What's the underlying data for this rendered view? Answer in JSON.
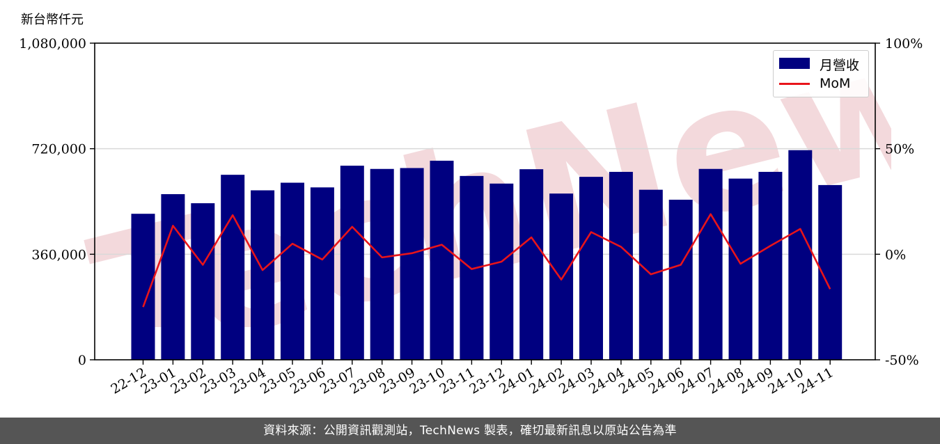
{
  "colors": {
    "bar": "#000080",
    "line": "#e8141a",
    "grid": "#d9d9d9",
    "watermark": "#f3d9dc",
    "footer_bg": "#555555"
  },
  "unit_label": "新台幣仟元",
  "watermark_text": "TechNews",
  "footer_text": "資料來源：公開資訊觀測站，TechNews 製表，確切最新訊息以原站公告為準",
  "chart_data": {
    "type": "bar",
    "categories": [
      "22-12",
      "23-01",
      "23-02",
      "23-03",
      "23-04",
      "23-05",
      "23-06",
      "23-07",
      "23-08",
      "23-09",
      "23-10",
      "23-11",
      "23-12",
      "24-01",
      "24-02",
      "24-03",
      "24-04",
      "24-05",
      "24-06",
      "24-07",
      "24-08",
      "24-09",
      "24-10",
      "24-11"
    ],
    "series": [
      {
        "name": "月營收",
        "type": "bar",
        "axis": "left",
        "values": [
          498000,
          565000,
          534000,
          631000,
          578000,
          604000,
          588000,
          662000,
          651000,
          654000,
          679000,
          627000,
          601000,
          650000,
          567000,
          624000,
          641000,
          580000,
          546000,
          651000,
          618000,
          641000,
          715000,
          596000
        ]
      },
      {
        "name": "MoM",
        "type": "line",
        "axis": "right",
        "values": [
          -25.0,
          13.5,
          -5.0,
          18.5,
          -7.5,
          5.0,
          -2.5,
          13.0,
          -1.5,
          0.5,
          4.5,
          -7.0,
          -3.5,
          8.0,
          -12.0,
          10.5,
          3.5,
          -9.5,
          -5.0,
          19.0,
          -4.5,
          4.0,
          12.0,
          -16.5
        ]
      }
    ],
    "y_left": {
      "ylim": [
        0,
        1080000
      ],
      "ticks": [
        0,
        360000,
        720000,
        1080000
      ],
      "tick_labels": [
        "0",
        "360,000",
        "720,000",
        "1,080,000"
      ]
    },
    "y_right": {
      "ylim": [
        -50,
        100
      ],
      "ticks": [
        -50,
        0,
        50,
        100
      ],
      "tick_labels": [
        "-50%",
        "0%",
        "50%",
        "100%"
      ]
    },
    "grid": "horizontal",
    "legend": "top-right"
  }
}
